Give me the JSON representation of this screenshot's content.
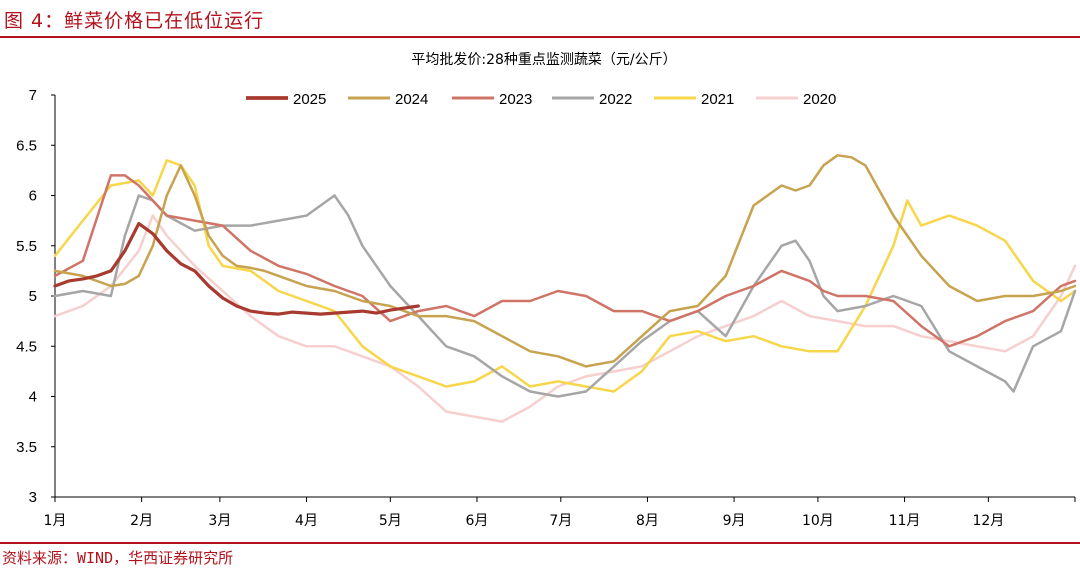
{
  "figure_title": "图 4：鲜菜价格已在低位运行",
  "source_note": "资料来源：WIND，华西证券研究所",
  "chart_data": {
    "type": "line",
    "title": "平均批发价:28种重点监测蔬菜（元/公斤）",
    "xlabel": "",
    "ylabel": "",
    "x_ticks": [
      "1月",
      "2月",
      "3月",
      "4月",
      "5月",
      "6月",
      "7月",
      "8月",
      "9月",
      "10月",
      "11月",
      "12月"
    ],
    "x_range_days": [
      0,
      365
    ],
    "ylim": [
      3,
      7
    ],
    "y_ticks": [
      "3",
      "3.5",
      "4",
      "4.5",
      "5",
      "5.5",
      "6",
      "6.5",
      "7"
    ],
    "grid": false,
    "legend_position": "top",
    "series": [
      {
        "name": "2025",
        "color": "#a93a2f",
        "width": 3.2,
        "x": [
          0,
          5,
          10,
          15,
          20,
          25,
          30,
          35,
          40,
          45,
          50,
          55,
          60,
          65,
          70,
          75,
          80,
          85,
          90,
          95,
          100,
          105,
          110,
          115,
          120,
          125,
          130
        ],
        "y": [
          5.1,
          5.15,
          5.17,
          5.2,
          5.25,
          5.45,
          5.72,
          5.62,
          5.45,
          5.32,
          5.25,
          5.1,
          4.98,
          4.9,
          4.85,
          4.83,
          4.82,
          4.84,
          4.83,
          4.82,
          4.83,
          4.84,
          4.85,
          4.83,
          4.86,
          4.88,
          4.9
        ]
      },
      {
        "name": "2024",
        "color": "#c7a24f",
        "width": 2.5,
        "x": [
          0,
          10,
          20,
          25,
          30,
          35,
          40,
          45,
          50,
          55,
          60,
          65,
          70,
          75,
          80,
          90,
          100,
          110,
          120,
          130,
          140,
          150,
          160,
          170,
          180,
          190,
          200,
          210,
          220,
          230,
          240,
          250,
          260,
          265,
          270,
          275,
          280,
          285,
          290,
          300,
          310,
          320,
          330,
          340,
          350,
          360,
          365
        ],
        "y": [
          5.25,
          5.2,
          5.1,
          5.12,
          5.2,
          5.5,
          6.0,
          6.3,
          6.0,
          5.6,
          5.4,
          5.3,
          5.28,
          5.25,
          5.2,
          5.1,
          5.05,
          4.95,
          4.9,
          4.8,
          4.8,
          4.75,
          4.6,
          4.45,
          4.4,
          4.3,
          4.35,
          4.6,
          4.85,
          4.9,
          5.2,
          5.9,
          6.1,
          6.05,
          6.1,
          6.3,
          6.4,
          6.38,
          6.3,
          5.8,
          5.4,
          5.1,
          4.95,
          5.0,
          5.0,
          5.05,
          5.1
        ]
      },
      {
        "name": "2023",
        "color": "#cf7467",
        "width": 2.5,
        "x": [
          0,
          10,
          20,
          25,
          30,
          40,
          50,
          60,
          70,
          80,
          90,
          100,
          110,
          120,
          130,
          140,
          150,
          160,
          170,
          180,
          190,
          200,
          210,
          220,
          230,
          240,
          250,
          260,
          270,
          275,
          280,
          290,
          300,
          310,
          320,
          330,
          340,
          350,
          360,
          365
        ],
        "y": [
          5.2,
          5.35,
          6.2,
          6.2,
          6.1,
          5.8,
          5.75,
          5.7,
          5.45,
          5.3,
          5.22,
          5.1,
          5.0,
          4.75,
          4.85,
          4.9,
          4.8,
          4.95,
          4.95,
          5.05,
          5.0,
          4.85,
          4.85,
          4.75,
          4.85,
          5.0,
          5.1,
          5.25,
          5.15,
          5.05,
          5.0,
          5.0,
          4.95,
          4.7,
          4.5,
          4.6,
          4.75,
          4.85,
          5.1,
          5.15
        ]
      },
      {
        "name": "2022",
        "color": "#a6a6a6",
        "width": 2.5,
        "x": [
          0,
          10,
          20,
          25,
          30,
          35,
          40,
          50,
          60,
          70,
          80,
          90,
          100,
          105,
          110,
          120,
          130,
          140,
          150,
          160,
          170,
          180,
          190,
          200,
          210,
          220,
          230,
          240,
          250,
          260,
          265,
          270,
          275,
          280,
          290,
          300,
          310,
          320,
          330,
          340,
          343,
          350,
          360,
          365
        ],
        "y": [
          5.0,
          5.05,
          5.0,
          5.6,
          6.0,
          5.95,
          5.8,
          5.65,
          5.7,
          5.7,
          5.75,
          5.8,
          6.0,
          5.8,
          5.5,
          5.1,
          4.8,
          4.5,
          4.4,
          4.2,
          4.05,
          4.0,
          4.05,
          4.3,
          4.55,
          4.75,
          4.85,
          4.6,
          5.1,
          5.5,
          5.55,
          5.35,
          5.0,
          4.85,
          4.9,
          5.0,
          4.9,
          4.45,
          4.3,
          4.15,
          4.05,
          4.5,
          4.65,
          5.05
        ]
      },
      {
        "name": "2021",
        "color": "#f7d64a",
        "width": 2.5,
        "x": [
          0,
          10,
          20,
          30,
          35,
          40,
          45,
          50,
          55,
          60,
          70,
          80,
          90,
          100,
          110,
          120,
          130,
          140,
          150,
          160,
          170,
          180,
          190,
          200,
          210,
          220,
          230,
          240,
          250,
          260,
          270,
          280,
          290,
          300,
          305,
          310,
          320,
          330,
          340,
          350,
          360,
          365
        ],
        "y": [
          5.4,
          5.75,
          6.1,
          6.15,
          6.0,
          6.35,
          6.3,
          6.1,
          5.5,
          5.3,
          5.25,
          5.05,
          4.95,
          4.85,
          4.5,
          4.3,
          4.2,
          4.1,
          4.15,
          4.3,
          4.1,
          4.15,
          4.1,
          4.05,
          4.25,
          4.6,
          4.65,
          4.55,
          4.6,
          4.5,
          4.45,
          4.45,
          4.9,
          5.5,
          5.95,
          5.7,
          5.8,
          5.7,
          5.55,
          5.15,
          4.95,
          5.05
        ]
      },
      {
        "name": "2020",
        "color": "#f6cfcf",
        "width": 2.5,
        "x": [
          0,
          10,
          20,
          30,
          35,
          40,
          50,
          60,
          70,
          80,
          90,
          100,
          110,
          120,
          130,
          140,
          150,
          160,
          170,
          180,
          190,
          200,
          210,
          220,
          230,
          240,
          250,
          260,
          270,
          280,
          290,
          300,
          310,
          320,
          330,
          340,
          350,
          360,
          365
        ],
        "y": [
          4.8,
          4.9,
          5.1,
          5.45,
          5.8,
          5.6,
          5.3,
          5.05,
          4.8,
          4.6,
          4.5,
          4.5,
          4.4,
          4.3,
          4.1,
          3.85,
          3.8,
          3.75,
          3.9,
          4.1,
          4.2,
          4.25,
          4.3,
          4.45,
          4.6,
          4.7,
          4.8,
          4.95,
          4.8,
          4.75,
          4.7,
          4.7,
          4.6,
          4.55,
          4.5,
          4.45,
          4.6,
          5.0,
          5.3
        ]
      }
    ]
  }
}
